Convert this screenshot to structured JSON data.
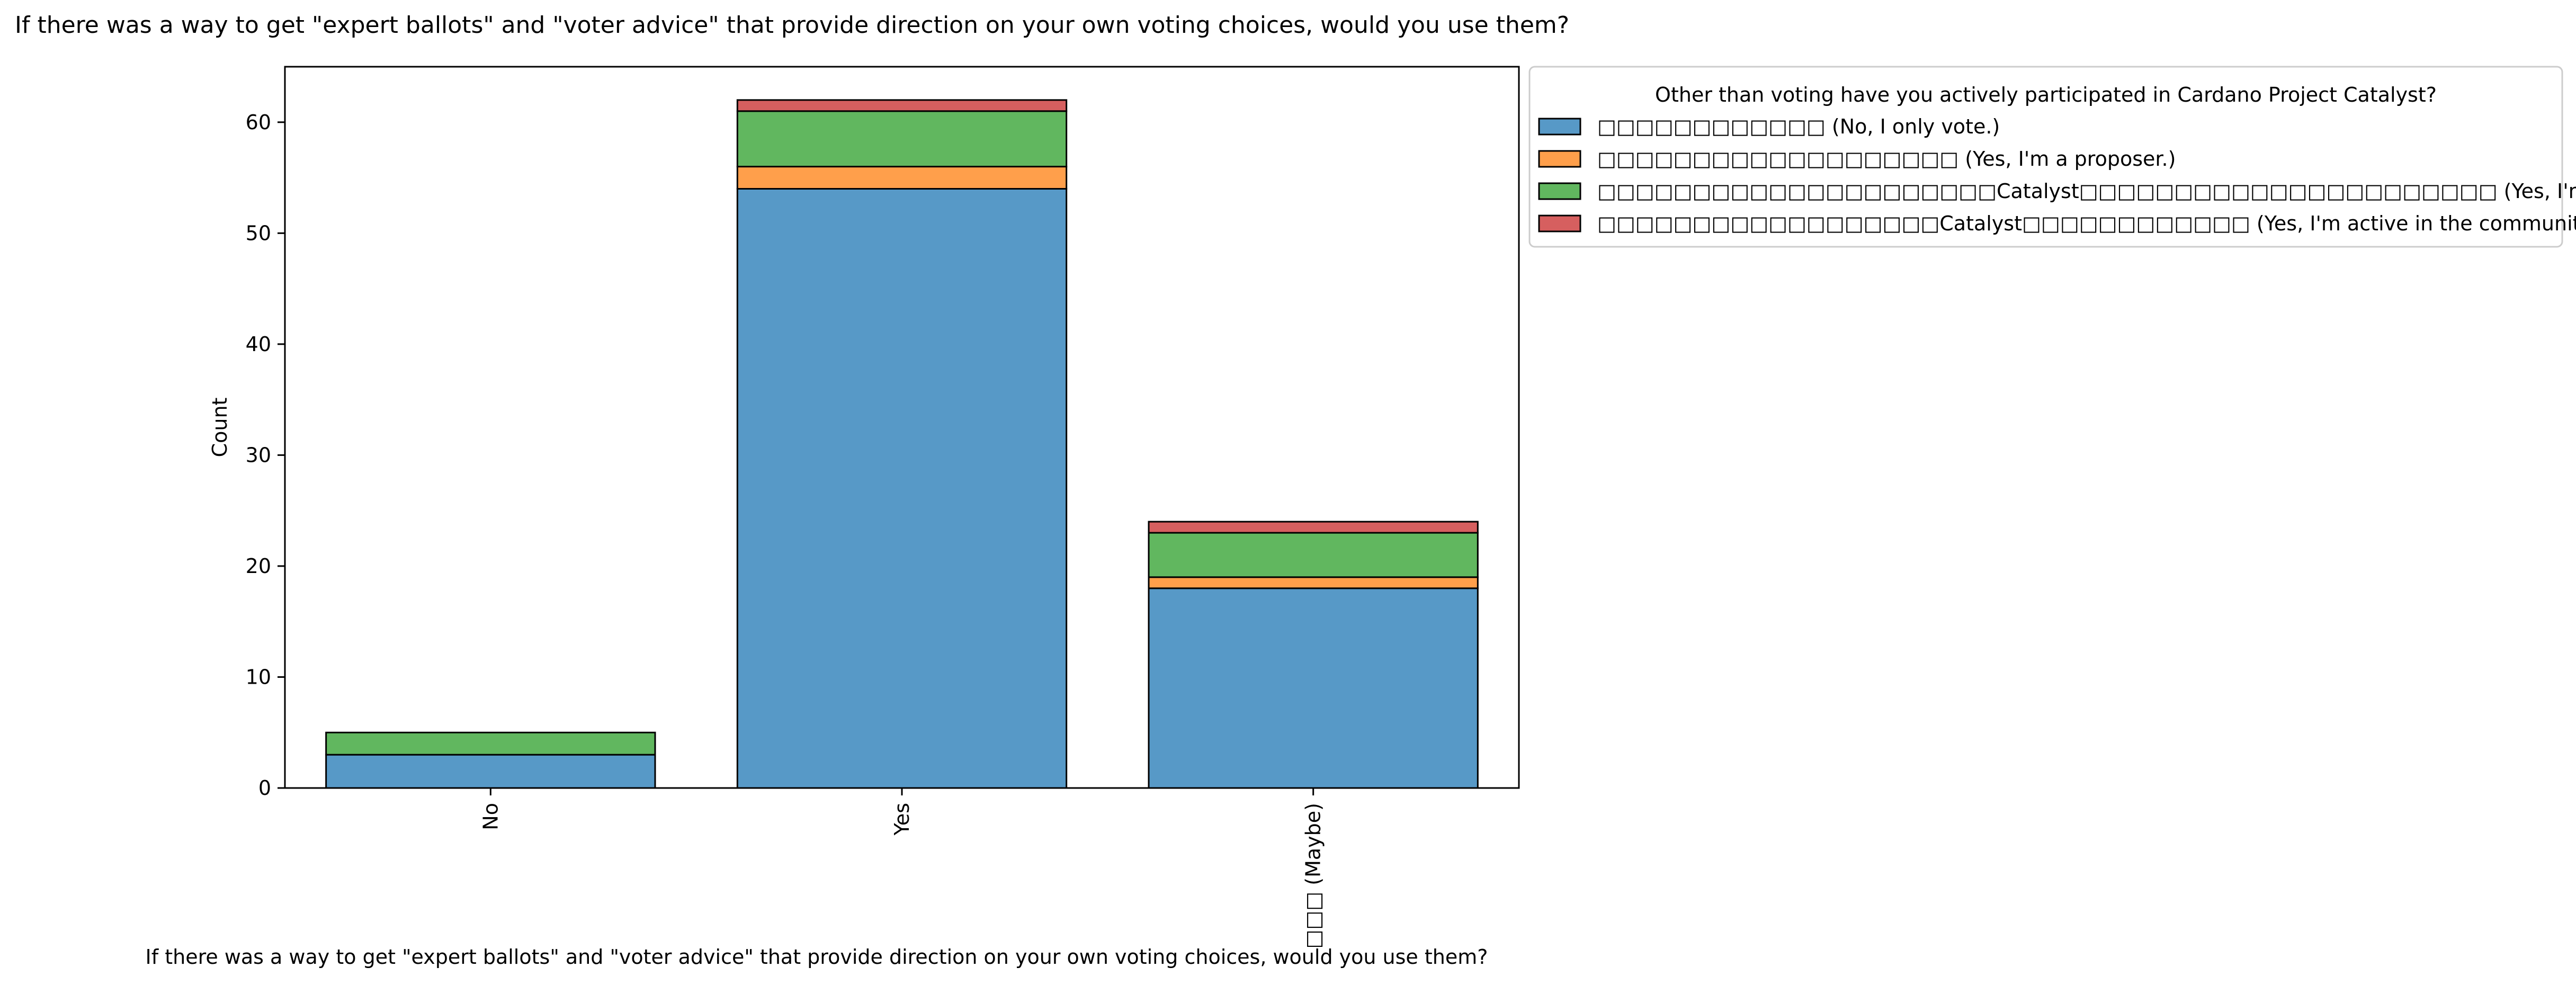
{
  "chart_data": {
    "type": "bar",
    "stacked": true,
    "title": "If there was a way to get \"expert ballots\" and \"voter advice\" that provide direction on your own voting choices, would you use them?",
    "xlabel": "If there was a way to get \"expert ballots\" and \"voter advice\" that provide direction on your own voting choices, would you use them?",
    "ylabel": "Count",
    "ylim": [
      0,
      65
    ],
    "yticks": [
      0,
      10,
      20,
      30,
      40,
      50,
      60
    ],
    "categories": [
      "No",
      "Yes",
      "□□□ (Maybe)"
    ],
    "legend": {
      "title": "Other than voting have you actively participated in Cardano Project Catalyst?",
      "placement": "outside-top-right"
    },
    "series": [
      {
        "name": "□□□□□□□□□□□□ (No, I only vote.)",
        "color": "#5799c7",
        "values": [
          3,
          54,
          18
        ]
      },
      {
        "name": "□□□□□□□□□□□□□□□□□□□ (Yes, I'm a proposer.)",
        "color": "#ff9f4b",
        "values": [
          0,
          2,
          1
        ]
      },
      {
        "name": "□□□□□□□□□□□□□□□□□□□□□Catalyst□□□□□□□□□□□□□□□□□□□□□□ (Yes, I'm a lurker in the community)",
        "color": "#61b75f",
        "values": [
          2,
          5,
          4
        ]
      },
      {
        "name": "□□□□□□□□□□□□□□□□□□Catalyst□□□□□□□□□□□□ (Yes, I'm active in the community.)",
        "color": "#d65f5f",
        "values": [
          0,
          1,
          1
        ]
      }
    ]
  }
}
